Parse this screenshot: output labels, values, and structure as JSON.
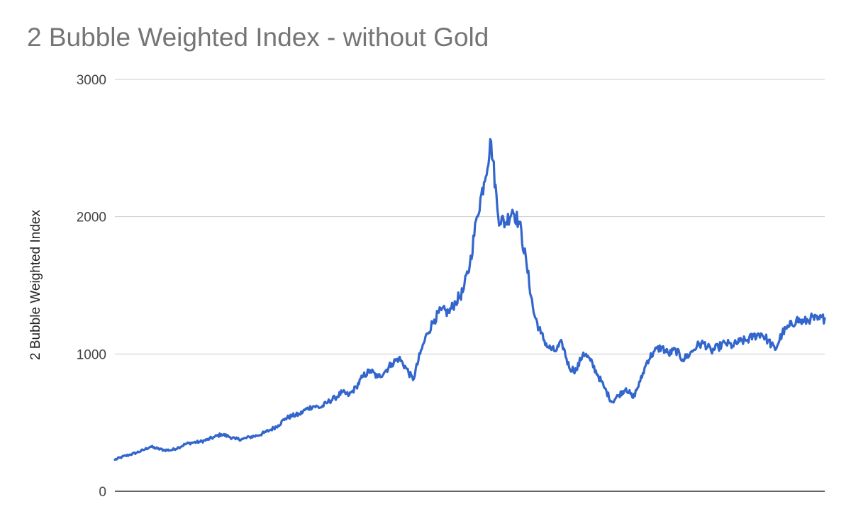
{
  "chart_data": {
    "type": "line",
    "title": "2 Bubble Weighted Index - without Gold",
    "xlabel": "",
    "ylabel": "2 Bubble Weighted Index",
    "ylim": [
      0,
      3000
    ],
    "yticks": [
      0,
      1000,
      2000,
      3000
    ],
    "grid": true,
    "legend": "none",
    "x_tick_labels_shown": false,
    "series": [
      {
        "color": "#3366cc",
        "x": [
          0,
          10,
          20,
          30,
          40,
          50,
          60,
          70,
          80,
          90,
          100,
          110,
          120,
          130,
          140,
          150,
          160,
          170,
          180,
          190,
          200,
          210,
          220,
          230,
          240,
          250,
          260,
          270,
          280,
          290,
          300,
          310,
          320,
          330,
          340,
          350,
          360,
          370,
          380,
          390,
          400,
          410,
          420,
          430,
          440,
          450,
          460,
          470,
          480,
          490,
          500,
          510,
          520,
          530,
          540,
          550,
          560,
          570,
          580,
          590,
          600,
          610,
          620,
          630,
          640,
          650,
          660,
          670,
          680,
          690,
          700,
          710,
          720,
          730,
          740,
          750,
          760,
          770,
          780,
          790,
          800,
          810,
          820,
          830,
          840,
          850,
          860,
          870,
          880,
          890,
          900,
          910,
          920,
          930,
          940,
          950,
          960,
          970,
          980,
          990,
          1000
        ],
        "values": [
          230,
          250,
          265,
          280,
          300,
          325,
          310,
          300,
          300,
          320,
          345,
          355,
          360,
          375,
          395,
          415,
          400,
          380,
          380,
          395,
          405,
          425,
          450,
          480,
          530,
          550,
          560,
          600,
          620,
          610,
          650,
          680,
          720,
          700,
          760,
          840,
          880,
          830,
          870,
          930,
          970,
          900,
          810,
          1000,
          1150,
          1250,
          1320,
          1300,
          1380,
          1450,
          1650,
          2000,
          2250,
          2550,
          2000,
          1950,
          2050,
          1950,
          1650,
          1300,
          1150,
          1050,
          1020,
          1080,
          900,
          880,
          1010,
          950,
          850,
          750,
          650,
          700,
          750,
          680,
          800,
          950,
          1020,
          1050,
          1000,
          1030,
          960,
          1000,
          1060,
          1080,
          1020,
          1050,
          1080,
          1060,
          1090,
          1100,
          1130,
          1150,
          1100,
          1030,
          1150,
          1200,
          1250,
          1230,
          1260,
          1250,
          1260
        ]
      }
    ]
  }
}
